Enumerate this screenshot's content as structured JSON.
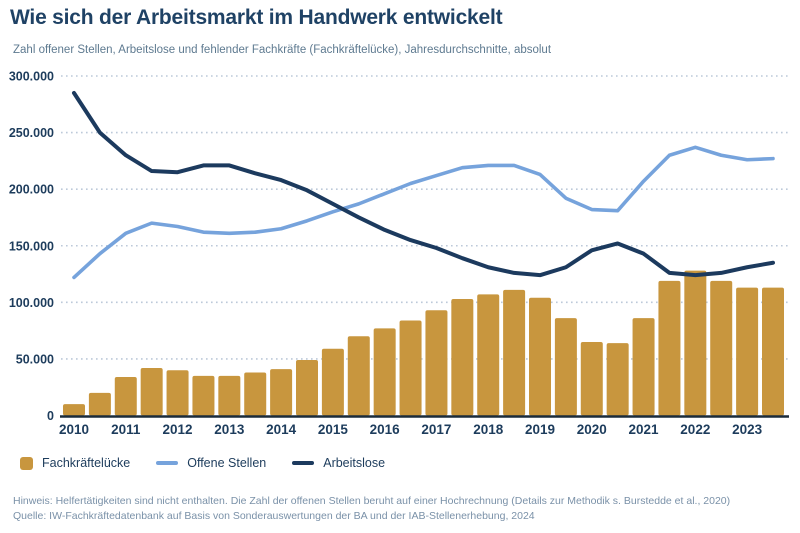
{
  "header": {
    "title": "Wie sich der Arbeitsmarkt im Handwerk entwickelt",
    "subtitle": "Zahl offener Stellen, Arbeitslose und fehlender Fachkräfte (Fachkräftelücke), Jahresdurchschnitte, absolut"
  },
  "chart_data": {
    "type": "bar+line combo",
    "x_axis": "years 2010-2023, two data points (half-year averages) per year",
    "year_labels": [
      "2010",
      "2011",
      "2012",
      "2013",
      "2014",
      "2015",
      "2016",
      "2017",
      "2018",
      "2019",
      "2020",
      "2021",
      "2022",
      "2023"
    ],
    "points_per_year": 2,
    "ylim": [
      0,
      300000
    ],
    "ytick_step": 50000,
    "ytick_labels": [
      "0",
      "50.000",
      "100.000",
      "150.000",
      "200.000",
      "250.000",
      "300.000"
    ],
    "grid": "horizontal dotted lines, solid dark baseline at 0",
    "legend_position": "bottom-left",
    "series": [
      {
        "name": "Fachkräftelücke",
        "type": "bar",
        "color": "#c8963e",
        "values": [
          10000,
          20000,
          34000,
          42000,
          40000,
          35000,
          35000,
          38000,
          41000,
          49000,
          59000,
          70000,
          77000,
          84000,
          93000,
          103000,
          107000,
          111000,
          104000,
          86000,
          65000,
          64000,
          86000,
          119000,
          128000,
          119000,
          113000,
          113000
        ]
      },
      {
        "name": "Offene Stellen",
        "type": "line",
        "color": "#76a3dc",
        "values": [
          122000,
          143000,
          161000,
          170000,
          167000,
          162000,
          161000,
          162000,
          165000,
          172000,
          180000,
          187000,
          196000,
          205000,
          212000,
          219000,
          221000,
          221000,
          213000,
          192000,
          182000,
          181000,
          207000,
          230000,
          237000,
          230000,
          226000,
          227000
        ]
      },
      {
        "name": "Arbeitslose",
        "type": "line",
        "color": "#1c3a5e",
        "values": [
          285000,
          250000,
          230000,
          216000,
          215000,
          221000,
          221000,
          214000,
          208000,
          199000,
          187000,
          175000,
          164000,
          155000,
          148000,
          139000,
          131000,
          126000,
          124000,
          131000,
          146000,
          152000,
          143000,
          126000,
          124000,
          126000,
          131000,
          135000
        ]
      }
    ]
  },
  "legend": {
    "items": [
      {
        "label": "Fachkräftelücke",
        "swatch": "square",
        "color": "#c8963e"
      },
      {
        "label": "Offene Stellen",
        "swatch": "line",
        "color": "#76a3dc"
      },
      {
        "label": "Arbeitslose",
        "swatch": "line",
        "color": "#1c3a5e"
      }
    ]
  },
  "footer": {
    "note": "Hinweis: Helfertätigkeiten sind nicht enthalten. Die Zahl der offenen Stellen beruht auf einer Hochrechnung (Details zur Methodik s. Burstedde et al., 2020)",
    "source": "Quelle: IW-Fachkräftedatenbank auf Basis von Sonderauswertungen der BA und der IAB-Stellenerhebung, 2024"
  },
  "colors": {
    "title_text": "#1f4265",
    "subtitle_text": "#5e7a90",
    "axis_label_text": "#1d3c5c",
    "gridline": "#bcc9d9",
    "baseline": "#1b2b3a",
    "footer_text": "#7a91a8",
    "background": "#ffffff"
  }
}
